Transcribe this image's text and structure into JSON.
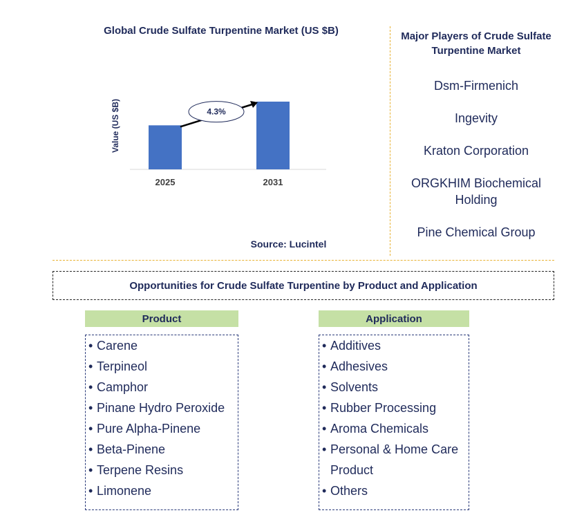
{
  "chart_data": {
    "type": "bar",
    "title": "Global Crude Sulfate Turpentine Market (US $B)",
    "ylabel": "Value (US $B)",
    "categories": [
      "2025",
      "2031"
    ],
    "values": [
      0.65,
      1.0
    ],
    "annotation": "4.3%",
    "bar_color": "#4472c4",
    "grid": false
  },
  "source": "Source: Lucintel",
  "players": {
    "title": "Major Players of Crude Sulfate Turpentine Market",
    "items": [
      "Dsm-Firmenich",
      "Ingevity",
      "Kraton Corporation",
      "ORGKHIM Biochemical Holding",
      "Pine Chemical Group"
    ]
  },
  "opportunities": {
    "title": "Opportunities for Crude Sulfate Turpentine by Product and Application",
    "product": {
      "header": "Product",
      "items": [
        "Carene",
        "Terpineol",
        "Camphor",
        "Pinane Hydro Peroxide",
        "Pure Alpha-Pinene",
        "Beta-Pinene",
        "Terpene Resins",
        "Limonene"
      ]
    },
    "application": {
      "header": "Application",
      "items": [
        "Additives",
        "Adhesives",
        "Solvents",
        "Rubber Processing",
        "Aroma Chemicals",
        "Personal & Home Care Product",
        "Others"
      ]
    }
  },
  "colors": {
    "accent": "#4472c4",
    "header_fill": "#c5e0a5",
    "divider": "#e8b130",
    "text": "#1f2a5a"
  }
}
